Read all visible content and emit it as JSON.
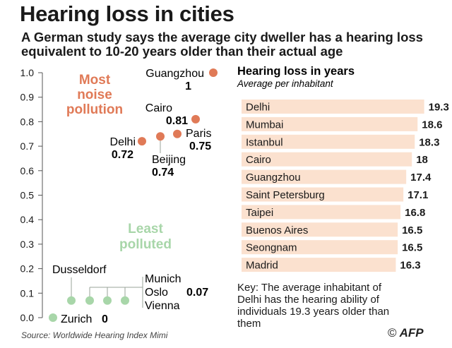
{
  "title": "Hearing loss in cities",
  "subtitle": "A German study says the average city dweller has a hearing loss equivalent to 10-20 years older than their actual age",
  "colors": {
    "noise": "#e07a57",
    "quiet": "#a8d6a9",
    "bar": "#fbe1cf",
    "text": "#1a1a1a",
    "axis": "#555555"
  },
  "scatter": {
    "y_ticks": [
      "1.0",
      "0.9",
      "0.8",
      "0.7",
      "0.6",
      "0.5",
      "0.4",
      "0.3",
      "0.2",
      "0.1",
      "0.0"
    ],
    "most_noise_label": [
      "Most",
      "noise",
      "pollution"
    ],
    "least_polluted_label": [
      "Least",
      "polluted"
    ],
    "labels": {
      "guangzhou": "Guangzhou",
      "guangzhou_v": "1",
      "cairo": "Cairo",
      "cairo_v": "0.81",
      "paris": "Paris",
      "paris_v": "0.75",
      "delhi": "Delhi",
      "delhi_v": "0.72",
      "beijing": "Beijing",
      "beijing_v": "0.74",
      "dusseldorf": "Dusseldorf",
      "munich": "Munich",
      "oslo": "Oslo",
      "vienna": "Vienna",
      "group_v": "0.07",
      "zurich": "Zurich",
      "zurich_v": "0"
    }
  },
  "bars": {
    "title": "Hearing loss in years",
    "subtitle": "Average per inhabitant"
  },
  "key_text": "Key: The average inhabitant of Delhi has the hearing ability of individuals 19.3 years older than them",
  "source": "Source: Worldwide Hearing Index Mimi",
  "credit": "AFP",
  "credit_symbol": "©",
  "chart_data": [
    {
      "type": "scatter",
      "title": "",
      "ylabel": "",
      "ylim": [
        0,
        1.0
      ],
      "points": [
        {
          "city": "Guangzhou",
          "y": 1.0,
          "group": "noise"
        },
        {
          "city": "Cairo",
          "y": 0.81,
          "group": "noise"
        },
        {
          "city": "Paris",
          "y": 0.75,
          "group": "noise"
        },
        {
          "city": "Beijing",
          "y": 0.74,
          "group": "noise"
        },
        {
          "city": "Delhi",
          "y": 0.72,
          "group": "noise"
        },
        {
          "city": "Dusseldorf",
          "y": 0.07,
          "group": "quiet"
        },
        {
          "city": "Munich",
          "y": 0.07,
          "group": "quiet"
        },
        {
          "city": "Oslo",
          "y": 0.07,
          "group": "quiet"
        },
        {
          "city": "Vienna",
          "y": 0.07,
          "group": "quiet"
        },
        {
          "city": "Zurich",
          "y": 0.0,
          "group": "quiet"
        }
      ]
    },
    {
      "type": "bar",
      "title": "Hearing loss in years",
      "subtitle": "Average per inhabitant",
      "xlim": [
        0,
        20
      ],
      "categories": [
        "Delhi",
        "Mumbai",
        "Istanbul",
        "Cairo",
        "Guangzhou",
        "Saint Petersburg",
        "Taipei",
        "Buenos Aires",
        "Seongnam",
        "Madrid"
      ],
      "values": [
        19.3,
        18.6,
        18.3,
        18,
        17.4,
        17.1,
        16.8,
        16.5,
        16.5,
        16.3
      ],
      "value_labels": [
        "19.3",
        "18.6",
        "18.3",
        "18",
        "17.4",
        "17.1",
        "16.8",
        "16.5",
        "16.5",
        "16.3"
      ]
    }
  ]
}
